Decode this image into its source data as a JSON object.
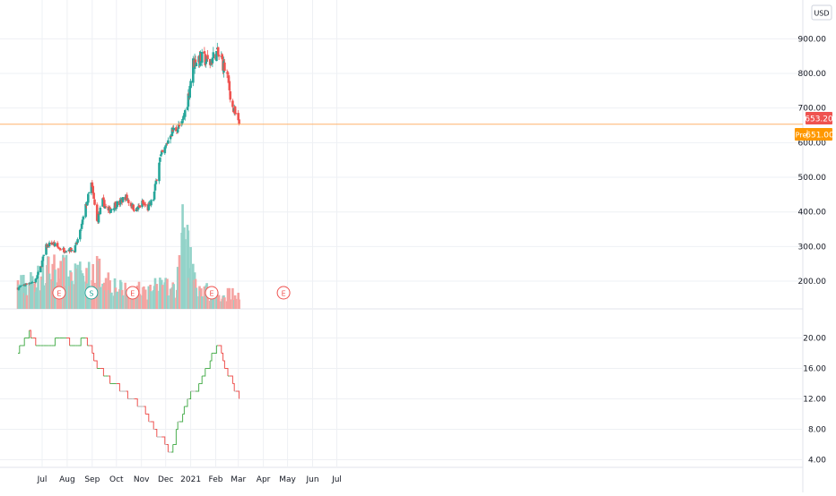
{
  "currency": "USD",
  "colors": {
    "up": "#26a69a",
    "down": "#ef5350",
    "vol_up": "#93d3c9",
    "vol_down": "#f5a3a1",
    "price_line": "#ffb26b",
    "last_price_bg": "#ef5350",
    "pre_price_bg": "#ff9800",
    "indicator_up": "#4caf50",
    "indicator_down": "#ef5350",
    "indicator_flat": "#b3b3b3",
    "earnings": "#ef5350",
    "dividend": "#26a69a",
    "grid": "#eef0f4",
    "axis_text": "#131722"
  },
  "price_labels": {
    "last": "653.20",
    "pre_tag": "Pre",
    "pre_value": "651.00"
  },
  "chart_data": [
    {
      "type": "candlestick",
      "ylim": [
        120,
        950
      ],
      "y_ticks": [
        "200.00",
        "300.00",
        "400.00",
        "500.00",
        "600.00",
        "700.00",
        "800.00",
        "900.00"
      ],
      "x_ticks": [
        "Jul",
        "Aug",
        "Sep",
        "Oct",
        "Nov",
        "Dec",
        "2021",
        "Feb",
        "Mar",
        "Apr",
        "May",
        "Jun",
        "Jul"
      ],
      "grid": true,
      "last_price": 653.2,
      "pre_market_price": 651.0,
      "events": [
        {
          "date": "2020-07-22",
          "symbol": "E",
          "kind": "earnings"
        },
        {
          "date": "2020-08-31",
          "symbol": "S",
          "kind": "split"
        },
        {
          "date": "2020-10-21",
          "symbol": "E",
          "kind": "earnings"
        },
        {
          "date": "2021-01-27",
          "symbol": "E",
          "kind": "earnings"
        },
        {
          "date": "2021-04-26",
          "symbol": "E",
          "kind": "earnings"
        }
      ],
      "series": [
        {
          "date": "2020-06-01",
          "close": 180
        },
        {
          "date": "2020-06-08",
          "close": 188
        },
        {
          "date": "2020-06-15",
          "close": 196
        },
        {
          "date": "2020-06-22",
          "close": 198
        },
        {
          "date": "2020-06-29",
          "close": 240
        },
        {
          "date": "2020-07-06",
          "close": 300
        },
        {
          "date": "2020-07-13",
          "close": 310
        },
        {
          "date": "2020-07-20",
          "close": 298
        },
        {
          "date": "2020-07-27",
          "close": 290
        },
        {
          "date": "2020-08-03",
          "close": 292
        },
        {
          "date": "2020-08-10",
          "close": 290
        },
        {
          "date": "2020-08-17",
          "close": 340
        },
        {
          "date": "2020-08-24",
          "close": 415
        },
        {
          "date": "2020-08-31",
          "close": 480
        },
        {
          "date": "2020-09-07",
          "close": 372
        },
        {
          "date": "2020-09-14",
          "close": 430
        },
        {
          "date": "2020-09-21",
          "close": 400
        },
        {
          "date": "2020-09-28",
          "close": 420
        },
        {
          "date": "2020-10-05",
          "close": 425
        },
        {
          "date": "2020-10-12",
          "close": 445
        },
        {
          "date": "2020-10-19",
          "close": 420
        },
        {
          "date": "2020-10-26",
          "close": 405
        },
        {
          "date": "2020-11-02",
          "close": 425
        },
        {
          "date": "2020-11-09",
          "close": 410
        },
        {
          "date": "2020-11-16",
          "close": 440
        },
        {
          "date": "2020-11-23",
          "close": 550
        },
        {
          "date": "2020-11-30",
          "close": 580
        },
        {
          "date": "2020-12-07",
          "close": 630
        },
        {
          "date": "2020-12-14",
          "close": 640
        },
        {
          "date": "2020-12-21",
          "close": 650
        },
        {
          "date": "2020-12-28",
          "close": 720
        },
        {
          "date": "2021-01-04",
          "close": 830
        },
        {
          "date": "2021-01-11",
          "close": 845
        },
        {
          "date": "2021-01-18",
          "close": 840
        },
        {
          "date": "2021-01-25",
          "close": 830
        },
        {
          "date": "2021-02-01",
          "close": 860
        },
        {
          "date": "2021-02-08",
          "close": 840
        },
        {
          "date": "2021-02-15",
          "close": 795
        },
        {
          "date": "2021-02-22",
          "close": 700
        },
        {
          "date": "2021-03-01",
          "close": 653.2
        }
      ]
    },
    {
      "type": "bar",
      "name": "volume",
      "series": [
        {
          "date": "2020-06-01",
          "value": 26
        },
        {
          "date": "2020-06-15",
          "value": 28
        },
        {
          "date": "2020-07-06",
          "value": 40
        },
        {
          "date": "2020-07-13",
          "value": 45
        },
        {
          "date": "2020-08-24",
          "value": 34
        },
        {
          "date": "2020-09-07",
          "value": 42
        },
        {
          "date": "2020-10-05",
          "value": 22
        },
        {
          "date": "2020-11-09",
          "value": 20
        },
        {
          "date": "2020-11-23",
          "value": 25
        },
        {
          "date": "2020-12-14",
          "value": 20
        },
        {
          "date": "2020-12-21",
          "value": 85
        },
        {
          "date": "2021-01-11",
          "value": 24
        },
        {
          "date": "2021-02-01",
          "value": 15
        },
        {
          "date": "2021-03-01",
          "value": 18
        }
      ]
    },
    {
      "type": "line",
      "name": "indicator",
      "ylim": [
        3,
        23
      ],
      "y_ticks": [
        "4.00",
        "8.00",
        "12.00",
        "16.00",
        "20.00"
      ],
      "series": [
        {
          "date": "2020-06-01",
          "value": 18
        },
        {
          "date": "2020-06-08",
          "value": 20
        },
        {
          "date": "2020-06-15",
          "value": 21
        },
        {
          "date": "2020-06-22",
          "value": 19
        },
        {
          "date": "2020-07-06",
          "value": 19
        },
        {
          "date": "2020-07-27",
          "value": 20
        },
        {
          "date": "2020-08-10",
          "value": 19
        },
        {
          "date": "2020-08-24",
          "value": 20
        },
        {
          "date": "2020-09-07",
          "value": 16
        },
        {
          "date": "2020-09-28",
          "value": 14
        },
        {
          "date": "2020-10-19",
          "value": 12
        },
        {
          "date": "2020-11-02",
          "value": 11
        },
        {
          "date": "2020-11-16",
          "value": 8
        },
        {
          "date": "2020-11-30",
          "value": 6
        },
        {
          "date": "2020-12-07",
          "value": 5
        },
        {
          "date": "2020-12-14",
          "value": 8
        },
        {
          "date": "2020-12-28",
          "value": 12
        },
        {
          "date": "2021-01-11",
          "value": 14
        },
        {
          "date": "2021-01-25",
          "value": 17
        },
        {
          "date": "2021-02-01",
          "value": 19
        },
        {
          "date": "2021-02-08",
          "value": 18
        },
        {
          "date": "2021-02-15",
          "value": 15
        },
        {
          "date": "2021-02-22",
          "value": 14
        },
        {
          "date": "2021-03-01",
          "value": 12
        }
      ]
    }
  ]
}
